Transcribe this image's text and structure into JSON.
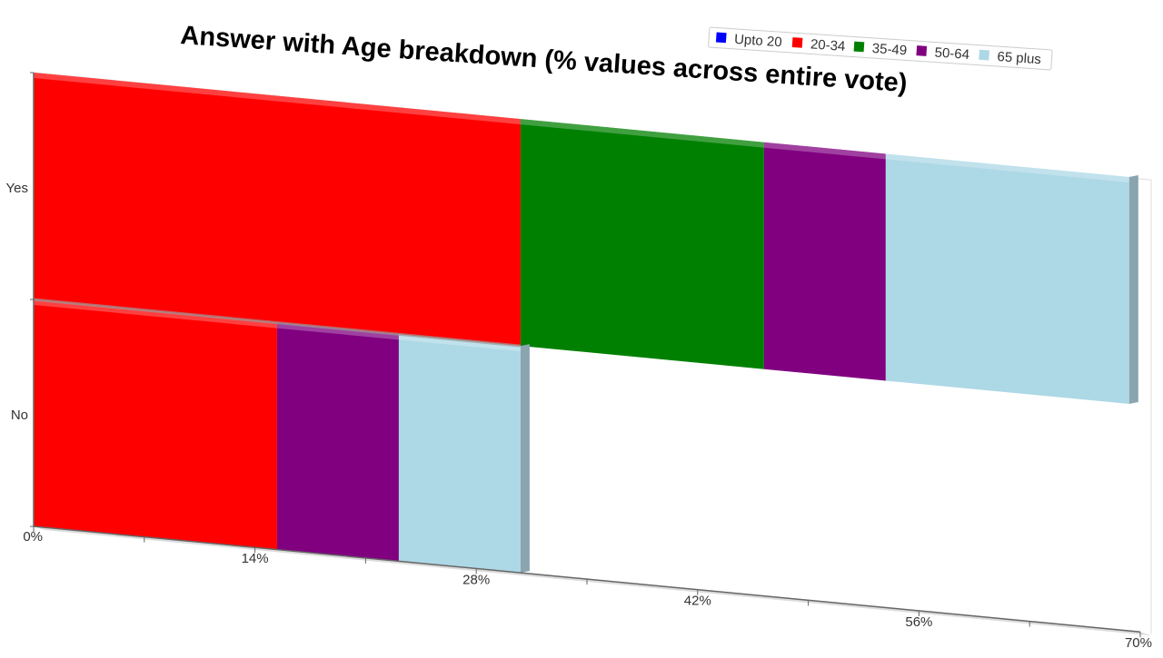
{
  "chart_data": {
    "type": "bar",
    "orientation": "horizontal",
    "stacked": true,
    "title": "Answer with Age breakdown (% values across entire vote)",
    "categories": [
      "Yes",
      "No"
    ],
    "series": [
      {
        "name": "Upto 20",
        "color": "#0000ff",
        "values": [
          0,
          0
        ]
      },
      {
        "name": "20-34",
        "color": "#ff0000",
        "values": [
          30.8,
          15.4
        ]
      },
      {
        "name": "35-49",
        "color": "#008000",
        "values": [
          15.4,
          0
        ]
      },
      {
        "name": "50-64",
        "color": "#800080",
        "values": [
          7.7,
          7.7
        ]
      },
      {
        "name": "65 plus",
        "color": "#add8e6",
        "values": [
          15.4,
          7.7
        ]
      }
    ],
    "xticks": [
      "0%",
      "14%",
      "28%",
      "42%",
      "56%",
      "70%"
    ],
    "xlim": [
      0,
      70
    ],
    "legend_position": "top-right",
    "grid": false
  }
}
